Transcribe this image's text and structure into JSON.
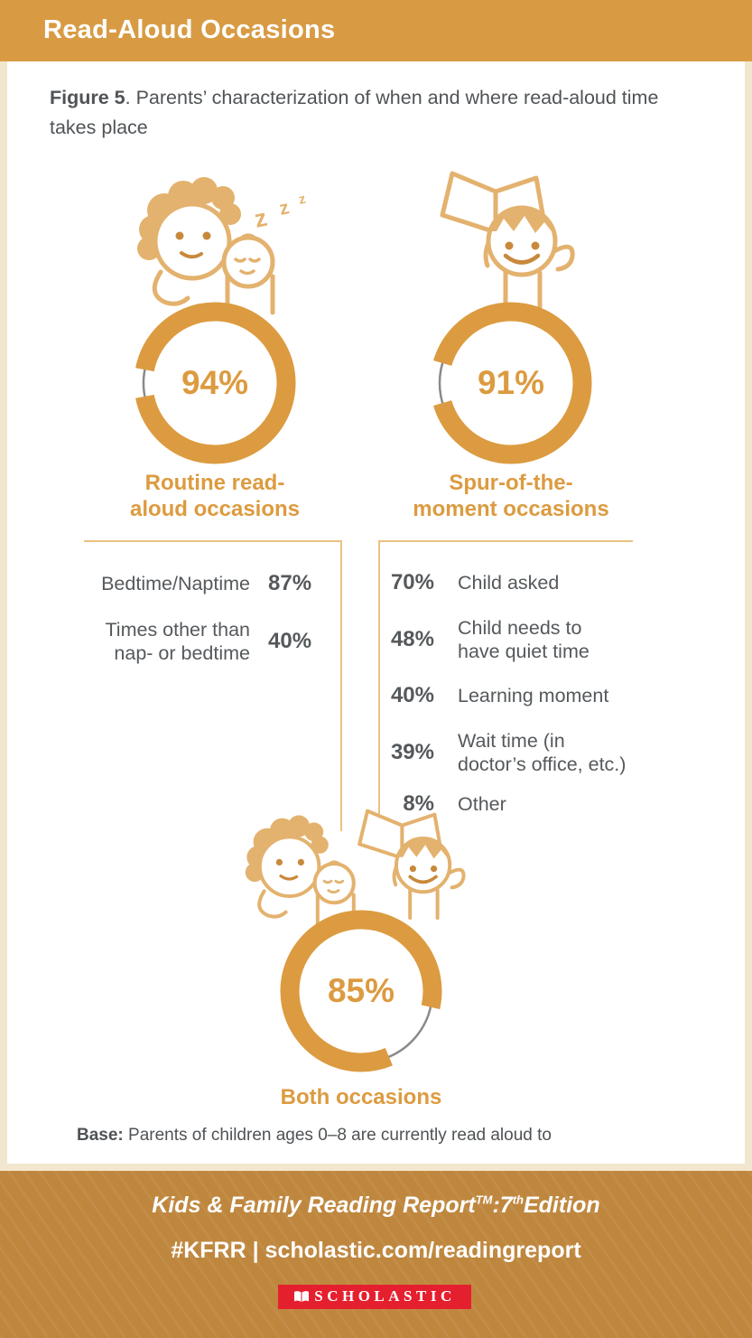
{
  "header": {
    "title": "Read-Aloud Occasions"
  },
  "figure": {
    "caption_label": "Figure 5",
    "caption_text": ". Parents’ characterization of when and where read-aloud time takes place"
  },
  "chart_data": {
    "type": "donut",
    "units": "%",
    "donuts": [
      {
        "value": 94,
        "pct": "94%",
        "label": "Routine read-\naloud occasions",
        "gap_center_deg": 270
      },
      {
        "value": 91,
        "pct": "91%",
        "label": "Spur-of-the-\nmoment occasions",
        "gap_center_deg": 270
      },
      {
        "value": 85,
        "pct": "85%",
        "label": "Both occasions",
        "gap_center_deg": 130
      }
    ],
    "routine_breakdown": [
      {
        "label": "Bedtime/Naptime",
        "value": 87,
        "pct": "87%"
      },
      {
        "label": "Times other than\nnap- or bedtime",
        "value": 40,
        "pct": "40%"
      }
    ],
    "spur_breakdown": [
      {
        "pct": "70%",
        "value": 70,
        "label": "Child asked"
      },
      {
        "pct": "48%",
        "value": 48,
        "label": "Child needs to\nhave quiet time"
      },
      {
        "pct": "40%",
        "value": 40,
        "label": "Learning moment"
      },
      {
        "pct": "39%",
        "value": 39,
        "label": "Wait time (in\ndoctor’s office, etc.)"
      },
      {
        "pct": "8%",
        "value": 8,
        "label": "Other"
      }
    ]
  },
  "illus": {
    "z1": "z",
    "z2": "z",
    "z3": "z"
  },
  "base_note": {
    "label": "Base:",
    "text": " Parents of children ages 0–8 are currently read aloud to"
  },
  "footer": {
    "report_title": "Kids & Family Reading Report",
    "tm": "TM",
    "colon_num": ":7",
    "ordinal": "th",
    "edition": "Edition",
    "tagline": "#KFRR | scholastic.com/readingreport",
    "logo_text": "SCHOLASTIC"
  },
  "colors": {
    "header_bg": "#D89B43",
    "footer_bg": "#BF873E",
    "page_edge_beige": "#F2E7CE",
    "accent_orange": "#DC9B40",
    "illustration_tan": "#E3B26E",
    "feature_orange": "#C8893C",
    "rule_orange": "#EBC183",
    "text_dark": "#55595C",
    "gap_gray": "#8A8A8A",
    "logo_red": "#E5202E"
  }
}
